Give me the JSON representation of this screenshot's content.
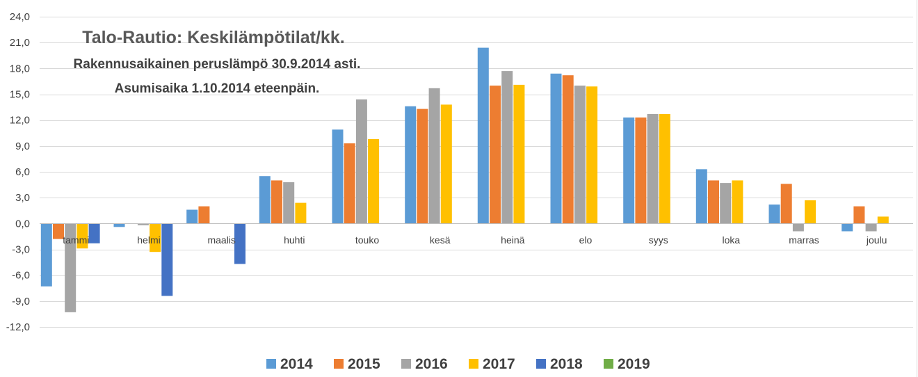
{
  "chart_data": {
    "type": "bar",
    "title": "Talo-Rautio: Keskilämpötilat/kk.",
    "subtitle_lines": [
      "Rakennusaikainen peruslämpö 30.9.2014 asti.",
      "Asumisaika 1.10.2014 eteenpäin."
    ],
    "xlabel": "",
    "ylabel": "",
    "ylim": [
      -12,
      24
    ],
    "yticks": [
      -12,
      -9,
      -6,
      -3,
      0,
      3,
      6,
      9,
      12,
      15,
      18,
      21,
      24
    ],
    "ytick_labels": [
      "-12,0",
      "-9,0",
      "-6,0",
      "-3,0",
      "0,0",
      "3,0",
      "6,0",
      "9,0",
      "12,0",
      "15,0",
      "18,0",
      "21,0",
      "24,0"
    ],
    "grid": true,
    "legend_position": "bottom",
    "categories": [
      "tammi",
      "helmi",
      "maalis",
      "huhti",
      "touko",
      "kesä",
      "heinä",
      "elo",
      "syys",
      "loka",
      "marras",
      "joulu"
    ],
    "series": [
      {
        "name": "2014",
        "color": "#5B9BD5",
        "values": [
          -7.3,
          -0.4,
          1.6,
          5.5,
          10.9,
          13.6,
          20.4,
          17.4,
          12.3,
          6.3,
          2.2,
          -0.9
        ]
      },
      {
        "name": "2015",
        "color": "#ED7D31",
        "values": [
          -1.8,
          null,
          2.0,
          5.0,
          9.3,
          13.3,
          16.0,
          17.2,
          12.3,
          5.0,
          4.6,
          2.0
        ]
      },
      {
        "name": "2016",
        "color": "#A5A5A5",
        "values": [
          -10.3,
          -0.2,
          null,
          4.8,
          14.4,
          15.7,
          17.7,
          16.0,
          12.7,
          4.7,
          -0.9,
          -0.9
        ]
      },
      {
        "name": "2017",
        "color": "#FFC000",
        "values": [
          -2.9,
          -3.3,
          null,
          2.4,
          9.8,
          13.8,
          16.1,
          15.9,
          12.7,
          5.0,
          2.7,
          0.8
        ]
      },
      {
        "name": "2018",
        "color": "#4472C4",
        "values": [
          -2.3,
          -8.4,
          -4.7,
          null,
          null,
          null,
          null,
          null,
          null,
          null,
          null,
          null
        ]
      },
      {
        "name": "2019",
        "color": "#70AD47",
        "values": [
          null,
          null,
          null,
          null,
          null,
          null,
          null,
          null,
          null,
          null,
          null,
          null
        ]
      }
    ]
  }
}
